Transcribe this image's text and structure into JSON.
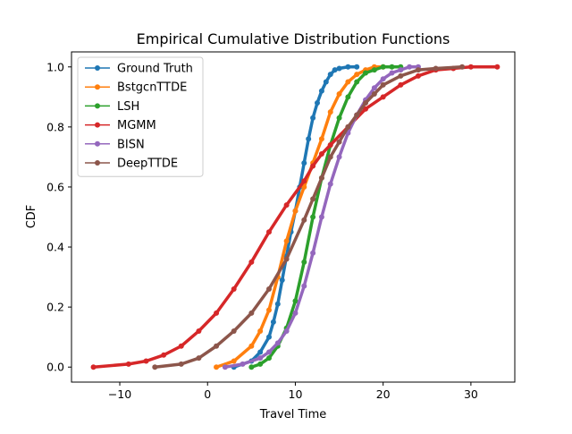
{
  "chart_data": {
    "type": "line",
    "title": "Empirical Cumulative Distribution Functions",
    "xlabel": "Travel Time",
    "ylabel": "CDF",
    "xlim": [
      -15.5,
      35
    ],
    "ylim": [
      -0.05,
      1.05
    ],
    "xticks": [
      -10,
      0,
      10,
      20,
      30
    ],
    "yticks": [
      0.0,
      0.2,
      0.4,
      0.6,
      0.8,
      1.0
    ],
    "xtick_labels": [
      "−10",
      "0",
      "10",
      "20",
      "30"
    ],
    "ytick_labels": [
      "0.0",
      "0.2",
      "0.4",
      "0.6",
      "0.8",
      "1.0"
    ],
    "grid": false,
    "legend_position": "top-left",
    "series": [
      {
        "name": "Ground Truth",
        "color": "#1f77b4",
        "x": [
          3.0,
          5.0,
          6.0,
          7.0,
          7.5,
          8.0,
          8.5,
          9.0,
          9.5,
          10.0,
          10.5,
          11.0,
          11.5,
          12.0,
          12.5,
          13.0,
          13.5,
          14.0,
          14.5,
          15.0,
          16.0,
          17.0
        ],
        "y": [
          0.0,
          0.02,
          0.05,
          0.1,
          0.15,
          0.21,
          0.29,
          0.37,
          0.45,
          0.52,
          0.6,
          0.68,
          0.76,
          0.83,
          0.88,
          0.92,
          0.95,
          0.975,
          0.99,
          0.995,
          1.0,
          1.0
        ]
      },
      {
        "name": "BstgcnTTDE",
        "color": "#ff7f0e",
        "x": [
          1.0,
          3.0,
          5.0,
          6.0,
          7.0,
          8.0,
          9.0,
          10.0,
          11.0,
          12.0,
          13.0,
          14.0,
          15.0,
          16.0,
          17.0,
          18.0,
          19.0,
          20.0
        ],
        "y": [
          0.0,
          0.02,
          0.07,
          0.12,
          0.19,
          0.3,
          0.42,
          0.52,
          0.6,
          0.68,
          0.76,
          0.85,
          0.91,
          0.95,
          0.975,
          0.99,
          1.0,
          1.0
        ]
      },
      {
        "name": "LSH",
        "color": "#2ca02c",
        "x": [
          5.0,
          6.0,
          7.0,
          8.0,
          9.0,
          10.0,
          11.0,
          12.0,
          13.0,
          14.0,
          15.0,
          16.0,
          17.0,
          18.0,
          19.0,
          20.0,
          21.0,
          22.0
        ],
        "y": [
          0.0,
          0.01,
          0.03,
          0.07,
          0.13,
          0.22,
          0.35,
          0.5,
          0.63,
          0.74,
          0.83,
          0.9,
          0.95,
          0.98,
          0.99,
          1.0,
          1.0,
          1.0
        ]
      },
      {
        "name": "MGMM",
        "color": "#d62728",
        "x": [
          -13.0,
          -9.0,
          -7.0,
          -5.0,
          -3.0,
          -1.0,
          1.0,
          3.0,
          5.0,
          7.0,
          9.0,
          11.0,
          12.0,
          13.0,
          14.0,
          16.0,
          18.0,
          20.0,
          22.0,
          24.0,
          26.0,
          28.0,
          30.0,
          33.0
        ],
        "y": [
          0.0,
          0.01,
          0.02,
          0.04,
          0.07,
          0.12,
          0.18,
          0.26,
          0.35,
          0.45,
          0.54,
          0.62,
          0.67,
          0.71,
          0.74,
          0.8,
          0.86,
          0.9,
          0.94,
          0.97,
          0.99,
          0.995,
          1.0,
          1.0
        ]
      },
      {
        "name": "BISN",
        "color": "#9467bd",
        "x": [
          2.0,
          4.0,
          6.0,
          7.0,
          8.0,
          9.0,
          10.0,
          11.0,
          12.0,
          13.0,
          14.0,
          15.0,
          16.0,
          17.0,
          18.0,
          19.0,
          20.0,
          21.0,
          22.0,
          23.0,
          24.0
        ],
        "y": [
          0.0,
          0.01,
          0.03,
          0.05,
          0.08,
          0.12,
          0.18,
          0.27,
          0.38,
          0.5,
          0.61,
          0.7,
          0.78,
          0.84,
          0.89,
          0.93,
          0.96,
          0.98,
          0.99,
          1.0,
          1.0
        ]
      },
      {
        "name": "DeepTTDE",
        "color": "#8c564b",
        "x": [
          -6.0,
          -3.0,
          -1.0,
          1.0,
          3.0,
          5.0,
          7.0,
          9.0,
          11.0,
          12.0,
          13.0,
          14.0,
          15.0,
          16.0,
          17.0,
          18.0,
          19.0,
          20.0,
          22.0,
          24.0,
          26.0,
          29.0
        ],
        "y": [
          0.0,
          0.01,
          0.03,
          0.07,
          0.12,
          0.18,
          0.26,
          0.36,
          0.49,
          0.56,
          0.63,
          0.7,
          0.75,
          0.8,
          0.84,
          0.88,
          0.91,
          0.94,
          0.97,
          0.99,
          0.995,
          1.0
        ]
      }
    ]
  }
}
